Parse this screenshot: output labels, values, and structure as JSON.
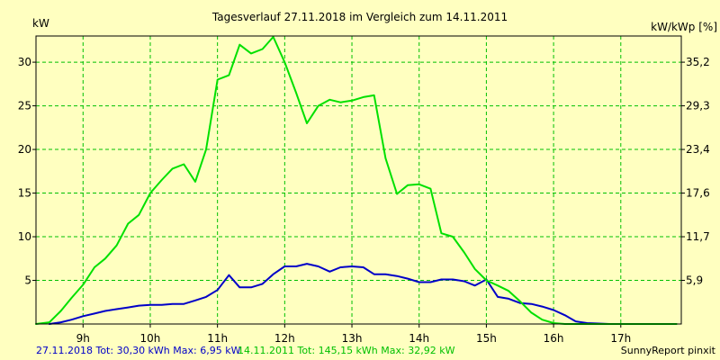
{
  "colors": {
    "background": "#ffffc0",
    "plot_background": "#ffffc0",
    "grid": "#00c000",
    "axis": "#000000",
    "series_2018": "#0000c8",
    "series_2011": "#00e000"
  },
  "chart_data": {
    "type": "line",
    "title": "Tagesverlauf 27.11.2018 im Vergleich zum 14.11.2011",
    "ylabel_left": "kW",
    "ylabel_right": "kW/kWp [%]",
    "xlim": [
      8.3,
      17.9
    ],
    "ylim": [
      0,
      33
    ],
    "x_ticks": [
      {
        "x": 9,
        "label": "9h"
      },
      {
        "x": 10,
        "label": "10h"
      },
      {
        "x": 11,
        "label": "11h"
      },
      {
        "x": 12,
        "label": "12h"
      },
      {
        "x": 13,
        "label": "13h"
      },
      {
        "x": 14,
        "label": "14h"
      },
      {
        "x": 15,
        "label": "15h"
      },
      {
        "x": 16,
        "label": "16h"
      },
      {
        "x": 17,
        "label": "17h"
      }
    ],
    "y_ticks_left": [
      {
        "y": 5,
        "label": "5"
      },
      {
        "y": 10,
        "label": "10"
      },
      {
        "y": 15,
        "label": "15"
      },
      {
        "y": 20,
        "label": "20"
      },
      {
        "y": 25,
        "label": "25"
      },
      {
        "y": 30,
        "label": "30"
      }
    ],
    "y_ticks_right": [
      {
        "y": 5,
        "label": "5,9"
      },
      {
        "y": 10,
        "label": "11,7"
      },
      {
        "y": 15,
        "label": "17,6"
      },
      {
        "y": 20,
        "label": "23,4"
      },
      {
        "y": 25,
        "label": "29,3"
      },
      {
        "y": 30,
        "label": "35,2"
      }
    ],
    "grid": true,
    "series": [
      {
        "name": "27.11.2018",
        "color": "#0000c8",
        "x": [
          8.5,
          8.67,
          8.83,
          9.0,
          9.17,
          9.33,
          9.5,
          9.67,
          9.83,
          10.0,
          10.17,
          10.33,
          10.5,
          10.67,
          10.83,
          11.0,
          11.17,
          11.33,
          11.5,
          11.67,
          11.83,
          12.0,
          12.17,
          12.33,
          12.5,
          12.67,
          12.83,
          13.0,
          13.17,
          13.33,
          13.5,
          13.67,
          13.83,
          14.0,
          14.17,
          14.33,
          14.5,
          14.67,
          14.83,
          15.0,
          15.17,
          15.33,
          15.5,
          15.67,
          15.83,
          16.0,
          16.17,
          16.33,
          16.5,
          16.67,
          16.83,
          17.0,
          17.17
        ],
        "values": [
          0.0,
          0.2,
          0.5,
          0.9,
          1.2,
          1.5,
          1.7,
          1.9,
          2.1,
          2.2,
          2.2,
          2.3,
          2.3,
          2.7,
          3.1,
          3.9,
          5.6,
          4.2,
          4.2,
          4.6,
          5.7,
          6.6,
          6.6,
          6.9,
          6.6,
          6.0,
          6.5,
          6.6,
          6.5,
          5.7,
          5.7,
          5.5,
          5.2,
          4.8,
          4.8,
          5.1,
          5.1,
          4.9,
          4.4,
          5.1,
          3.1,
          2.9,
          2.4,
          2.3,
          2.0,
          1.6,
          1.0,
          0.3,
          0.1,
          0.05,
          0.0,
          0.0,
          0.0
        ]
      },
      {
        "name": "14.11.2011",
        "color": "#00e000",
        "x": [
          8.3,
          8.5,
          8.67,
          8.83,
          9.0,
          9.17,
          9.33,
          9.5,
          9.67,
          9.83,
          10.0,
          10.17,
          10.33,
          10.5,
          10.67,
          10.83,
          11.0,
          11.17,
          11.33,
          11.5,
          11.67,
          11.83,
          12.0,
          12.17,
          12.33,
          12.5,
          12.67,
          12.83,
          13.0,
          13.17,
          13.33,
          13.5,
          13.67,
          13.83,
          14.0,
          14.17,
          14.33,
          14.5,
          14.67,
          14.83,
          15.0,
          15.17,
          15.33,
          15.5,
          15.67,
          15.83,
          16.0,
          16.17,
          16.33,
          16.5,
          16.67,
          16.83,
          17.0,
          17.17,
          17.33,
          17.5,
          17.67,
          17.83
        ],
        "values": [
          0.0,
          0.2,
          1.5,
          3.0,
          4.5,
          6.5,
          7.5,
          9.0,
          11.5,
          12.5,
          15.0,
          16.5,
          17.8,
          18.3,
          16.3,
          20.0,
          28.0,
          28.5,
          32.0,
          31.0,
          31.5,
          32.9,
          30.0,
          26.5,
          23.0,
          25.0,
          25.7,
          25.4,
          25.6,
          26.0,
          26.2,
          19.0,
          14.9,
          15.9,
          16.0,
          15.5,
          10.4,
          10.0,
          8.2,
          6.3,
          5.0,
          4.4,
          3.8,
          2.6,
          1.3,
          0.5,
          0.1,
          0.0,
          0.0,
          0.0,
          0.0,
          0.0,
          0.0,
          0.0,
          0.0,
          0.0,
          0.0,
          0.0
        ]
      }
    ]
  },
  "footer": {
    "series_2018_text": "27.11.2018 Tot: 30,30 kWh Max: 6,95 kW",
    "series_2011_text": "14.11.2011 Tot: 145,15 kWh Max: 32,92 kW",
    "credit": "SunnyReport pinxit"
  }
}
